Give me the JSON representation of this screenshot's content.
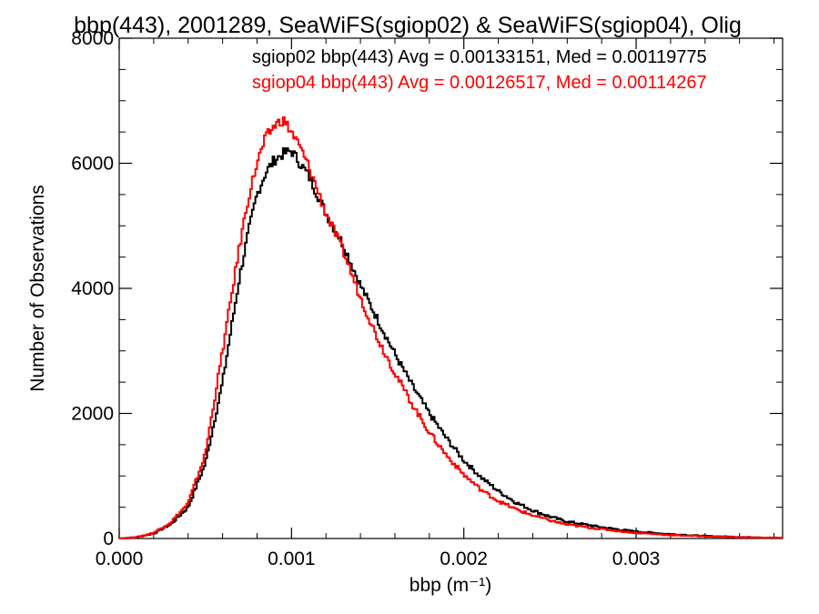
{
  "chart_data": {
    "type": "line",
    "title": "bbp(443), 2001289, SeaWiFS(sgiop02) & SeaWiFS(sgiop04), Olig",
    "xlabel": "bbp (m⁻¹)",
    "ylabel": "Number of Observations",
    "xlim": [
      0.0,
      0.00385
    ],
    "ylim": [
      0,
      8000
    ],
    "xticks": [
      0.0,
      0.001,
      0.002,
      0.003
    ],
    "xtick_labels": [
      "0.000",
      "0.001",
      "0.002",
      "0.003"
    ],
    "yticks": [
      0,
      2000,
      4000,
      6000,
      8000
    ],
    "ytick_labels": [
      "0",
      "2000",
      "4000",
      "6000",
      "8000"
    ],
    "grid": false,
    "step": true,
    "annotations": [
      {
        "text": "sgiop02 bbp(443) Avg = 0.00133151, Med = 0.00119775",
        "color": "#000000"
      },
      {
        "text": "sgiop04 bbp(443) Avg = 0.00126517, Med = 0.00114267",
        "color": "#ff0000"
      }
    ],
    "x": [
      0.0,
      0.0001,
      0.0002,
      0.0003,
      0.0004,
      0.0005,
      0.0006,
      0.0007,
      0.00075,
      0.0008,
      0.00085,
      0.0009,
      0.00095,
      0.001,
      0.00105,
      0.0011,
      0.0012,
      0.0013,
      0.0014,
      0.0015,
      0.0016,
      0.0017,
      0.0018,
      0.0019,
      0.002,
      0.0021,
      0.0022,
      0.0023,
      0.0024,
      0.0025,
      0.0026,
      0.0028,
      0.003,
      0.0032,
      0.0034,
      0.0036,
      0.00385
    ],
    "series": [
      {
        "name": "sgiop02",
        "color": "#000000",
        "values": [
          0,
          20,
          80,
          230,
          500,
          1200,
          2500,
          4200,
          4900,
          5500,
          5850,
          6050,
          6150,
          6200,
          6000,
          5800,
          5200,
          4700,
          4050,
          3500,
          2950,
          2450,
          2000,
          1600,
          1250,
          980,
          760,
          580,
          450,
          350,
          270,
          180,
          110,
          70,
          40,
          25,
          10
        ]
      },
      {
        "name": "sgiop04",
        "color": "#ff0000",
        "values": [
          0,
          20,
          90,
          260,
          560,
          1350,
          3000,
          4700,
          5450,
          6000,
          6400,
          6600,
          6700,
          6500,
          6250,
          5950,
          5200,
          4600,
          3850,
          3200,
          2650,
          2150,
          1700,
          1330,
          1020,
          780,
          600,
          470,
          370,
          290,
          220,
          150,
          90,
          55,
          35,
          20,
          10
        ]
      }
    ]
  }
}
